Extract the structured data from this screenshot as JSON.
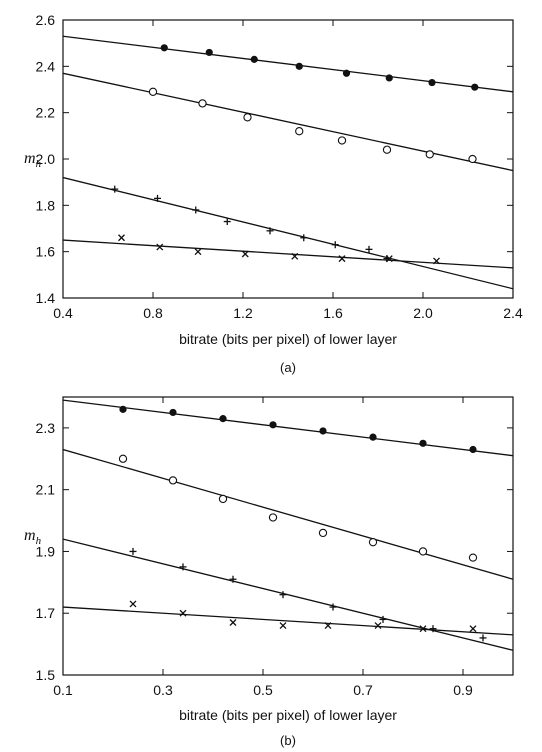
{
  "chart_data": [
    {
      "type": "scatter",
      "panel_label": "(a)",
      "xlabel": "bitrate (bits per pixel) of lower layer",
      "ylabel": "m",
      "ylabel_sub": "h",
      "xlim": [
        0.4,
        2.4
      ],
      "ylim": [
        1.4,
        2.6
      ],
      "xticks": [
        "0.4",
        "0.8",
        "1.2",
        "1.6",
        "2.0",
        "2.4"
      ],
      "yticks": [
        "1.4",
        "1.6",
        "1.8",
        "2.0",
        "2.2",
        "2.4",
        "2.6"
      ],
      "grid": false,
      "series": [
        {
          "marker": "filled-circle",
          "points": [
            [
              0.85,
              2.48
            ],
            [
              1.05,
              2.46
            ],
            [
              1.25,
              2.43
            ],
            [
              1.45,
              2.4
            ],
            [
              1.66,
              2.37
            ],
            [
              1.85,
              2.35
            ],
            [
              2.04,
              2.33
            ],
            [
              2.23,
              2.31
            ]
          ],
          "fit": [
            [
              0.4,
              2.53
            ],
            [
              2.4,
              2.29
            ]
          ]
        },
        {
          "marker": "open-circle",
          "points": [
            [
              0.8,
              2.29
            ],
            [
              1.02,
              2.24
            ],
            [
              1.22,
              2.18
            ],
            [
              1.45,
              2.12
            ],
            [
              1.64,
              2.08
            ],
            [
              1.84,
              2.04
            ],
            [
              2.03,
              2.02
            ],
            [
              2.22,
              2.0
            ]
          ],
          "fit": [
            [
              0.4,
              2.37
            ],
            [
              2.4,
              1.95
            ]
          ]
        },
        {
          "marker": "plus",
          "points": [
            [
              0.63,
              1.87
            ],
            [
              0.82,
              1.83
            ],
            [
              0.99,
              1.78
            ],
            [
              1.13,
              1.73
            ],
            [
              1.32,
              1.69
            ],
            [
              1.47,
              1.66
            ],
            [
              1.61,
              1.63
            ],
            [
              1.76,
              1.61
            ],
            [
              1.84,
              1.57
            ]
          ],
          "fit": [
            [
              0.4,
              1.92
            ],
            [
              2.4,
              1.44
            ]
          ]
        },
        {
          "marker": "cross",
          "points": [
            [
              0.66,
              1.66
            ],
            [
              0.83,
              1.62
            ],
            [
              1.0,
              1.6
            ],
            [
              1.21,
              1.59
            ],
            [
              1.43,
              1.58
            ],
            [
              1.64,
              1.57
            ],
            [
              1.85,
              1.57
            ],
            [
              2.06,
              1.56
            ]
          ],
          "fit": [
            [
              0.4,
              1.65
            ],
            [
              2.4,
              1.53
            ]
          ]
        }
      ]
    },
    {
      "type": "scatter",
      "panel_label": "(b)",
      "xlabel": "bitrate (bits per pixel) of lower layer",
      "ylabel": "m",
      "ylabel_sub": "h",
      "xlim": [
        0.1,
        1.0
      ],
      "ylim": [
        1.5,
        2.4
      ],
      "xticks": [
        "0.1",
        "0.3",
        "0.5",
        "0.7",
        "0.9"
      ],
      "yticks": [
        "1.5",
        "1.7",
        "1.9",
        "2.1",
        "2.3"
      ],
      "grid": false,
      "series": [
        {
          "marker": "filled-circle",
          "points": [
            [
              0.22,
              2.36
            ],
            [
              0.32,
              2.35
            ],
            [
              0.42,
              2.33
            ],
            [
              0.52,
              2.31
            ],
            [
              0.62,
              2.29
            ],
            [
              0.72,
              2.27
            ],
            [
              0.82,
              2.25
            ],
            [
              0.92,
              2.23
            ]
          ],
          "fit": [
            [
              0.1,
              2.39
            ],
            [
              1.0,
              2.21
            ]
          ]
        },
        {
          "marker": "open-circle",
          "points": [
            [
              0.22,
              2.2
            ],
            [
              0.32,
              2.13
            ],
            [
              0.42,
              2.07
            ],
            [
              0.52,
              2.01
            ],
            [
              0.62,
              1.96
            ],
            [
              0.72,
              1.93
            ],
            [
              0.82,
              1.9
            ],
            [
              0.92,
              1.88
            ]
          ],
          "fit": [
            [
              0.1,
              2.23
            ],
            [
              1.0,
              1.81
            ]
          ]
        },
        {
          "marker": "plus",
          "points": [
            [
              0.24,
              1.9
            ],
            [
              0.34,
              1.85
            ],
            [
              0.44,
              1.81
            ],
            [
              0.54,
              1.76
            ],
            [
              0.64,
              1.72
            ],
            [
              0.74,
              1.68
            ],
            [
              0.84,
              1.65
            ],
            [
              0.94,
              1.62
            ]
          ],
          "fit": [
            [
              0.1,
              1.94
            ],
            [
              1.0,
              1.58
            ]
          ]
        },
        {
          "marker": "cross",
          "points": [
            [
              0.24,
              1.73
            ],
            [
              0.34,
              1.7
            ],
            [
              0.44,
              1.67
            ],
            [
              0.54,
              1.66
            ],
            [
              0.63,
              1.66
            ],
            [
              0.73,
              1.66
            ],
            [
              0.82,
              1.65
            ],
            [
              0.92,
              1.65
            ]
          ],
          "fit": [
            [
              0.1,
              1.72
            ],
            [
              1.0,
              1.63
            ]
          ]
        }
      ]
    }
  ]
}
